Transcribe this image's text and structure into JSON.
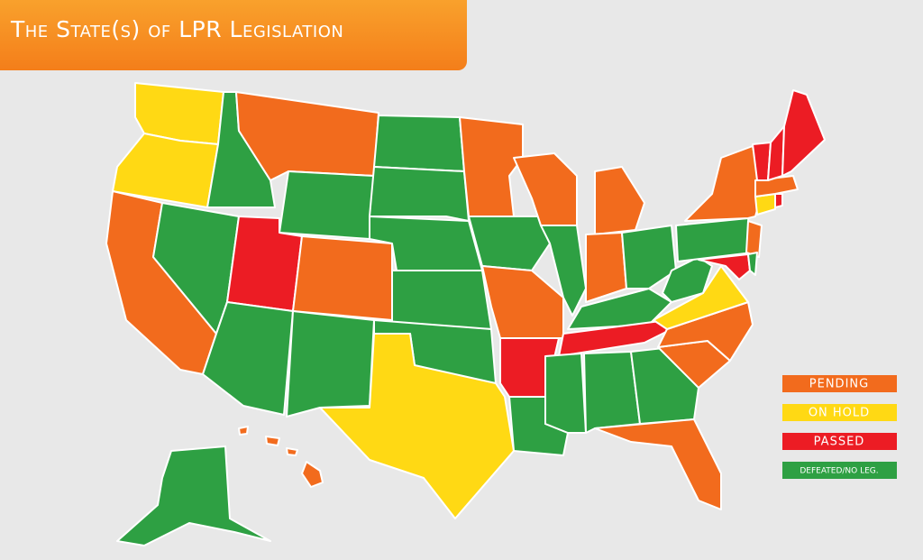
{
  "title": "The State(s) of LPR Legislation",
  "legend": {
    "items": [
      {
        "label": "PENDING",
        "color": "#f26b1d"
      },
      {
        "label": "ON HOLD",
        "color": "#ffd914"
      },
      {
        "label": "PASSED",
        "color": "#ec1c24"
      },
      {
        "label": "DEFEATED/NO LEG.",
        "color": "#2ea043"
      }
    ]
  }
}
